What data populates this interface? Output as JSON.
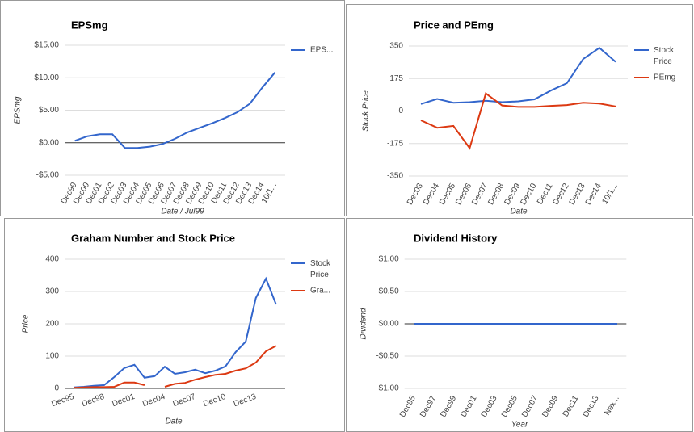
{
  "chart_data": [
    {
      "type": "line",
      "title": "EPSmg",
      "y_label": "EPSmg",
      "x_label": "Date / Jul99",
      "categories": [
        "Dec99",
        "Dec00",
        "Dec01",
        "Dec02",
        "Dec03",
        "Dec04",
        "Dec05",
        "Dec06",
        "Dec07",
        "Dec08",
        "Dec09",
        "Dec10",
        "Dec11",
        "Dec12",
        "Dec13",
        "Dec14",
        "10/1..."
      ],
      "series": [
        {
          "name": "EPS...",
          "color": "#3366cc",
          "values": [
            0.3,
            1.0,
            1.3,
            1.3,
            -0.8,
            -0.8,
            -0.6,
            -0.2,
            0.6,
            1.6,
            2.3,
            3.0,
            3.8,
            4.7,
            6.0,
            8.5,
            10.8
          ]
        }
      ],
      "ylim": [
        -5,
        15
      ],
      "yticks": [
        {
          "value": -5,
          "label": "-$5.00"
        },
        {
          "value": 0,
          "label": "$0.00"
        },
        {
          "value": 5,
          "label": "$5.00"
        },
        {
          "value": 10,
          "label": "$10.00"
        },
        {
          "value": 15,
          "label": "$15.00"
        }
      ],
      "grid": true,
      "legend": "right"
    },
    {
      "type": "line",
      "title": "Price and PEmg",
      "y_label": "Stock Price",
      "x_label": "Date",
      "categories": [
        "Dec03",
        "Dec04",
        "Dec05",
        "Dec06",
        "Dec07",
        "Dec08",
        "Dec09",
        "Dec10",
        "Dec11",
        "Dec12",
        "Dec13",
        "Dec14",
        "10/1..."
      ],
      "series": [
        {
          "name": "Stock Price",
          "color": "#3366cc",
          "values": [
            38,
            65,
            45,
            48,
            55,
            48,
            52,
            63,
            110,
            150,
            280,
            340,
            265
          ]
        },
        {
          "name": "PEmg",
          "color": "#dc3912",
          "values": [
            -50,
            -90,
            -80,
            -200,
            95,
            30,
            22,
            22,
            28,
            32,
            45,
            40,
            25
          ]
        }
      ],
      "ylim": [
        -350,
        350
      ],
      "yticks": [
        -350,
        -175,
        0,
        175,
        350
      ],
      "grid": true,
      "legend": "right"
    },
    {
      "type": "line",
      "title": "Graham Number and Stock Price",
      "y_label": "Price",
      "x_label": "Date",
      "categories": [
        "Dec95",
        null,
        null,
        "Dec98",
        null,
        null,
        "Dec01",
        null,
        null,
        "Dec04",
        null,
        null,
        "Dec07",
        null,
        null,
        "Dec10",
        null,
        null,
        "Dec13",
        null,
        null
      ],
      "series": [
        {
          "name": "Stock Price",
          "color": "#3366cc",
          "values": [
            3,
            5,
            8,
            10,
            35,
            63,
            73,
            33,
            38,
            67,
            45,
            50,
            58,
            47,
            55,
            68,
            112,
            145,
            280,
            340,
            260
          ]
        },
        {
          "name": "Gra...",
          "color": "#dc3912",
          "values": [
            2,
            3,
            4,
            4,
            5,
            18,
            18,
            10,
            null,
            5,
            14,
            17,
            27,
            35,
            42,
            45,
            55,
            62,
            80,
            115,
            132
          ]
        }
      ],
      "ylim": [
        0,
        400
      ],
      "yticks": [
        0,
        100,
        200,
        300,
        400
      ],
      "grid": true,
      "legend": "right"
    },
    {
      "type": "line",
      "title": "Dividend History",
      "y_label": "Dividend",
      "x_label": "Year",
      "categories": [
        "Dec95",
        null,
        "Dec97",
        null,
        "Dec99",
        null,
        "Dec01",
        null,
        "Dec03",
        null,
        "Dec05",
        null,
        "Dec07",
        null,
        "Dec09",
        null,
        "Dec11",
        null,
        "Dec13",
        null,
        "Nex..."
      ],
      "series": [
        {
          "color": "#3366cc",
          "values": [
            0,
            0,
            0,
            0,
            0,
            0,
            0,
            0,
            0,
            0,
            0,
            0,
            0,
            0,
            0,
            0,
            0,
            0,
            0,
            0,
            0
          ]
        }
      ],
      "ylim": [
        -1,
        1
      ],
      "yticks": [
        {
          "value": -1,
          "label": "-$1.00"
        },
        {
          "value": -0.5,
          "label": "-$0.50"
        },
        {
          "value": 0,
          "label": "$0.00"
        },
        {
          "value": 0.5,
          "label": "$0.50"
        },
        {
          "value": 1,
          "label": "$1.00"
        }
      ],
      "grid": true
    }
  ]
}
